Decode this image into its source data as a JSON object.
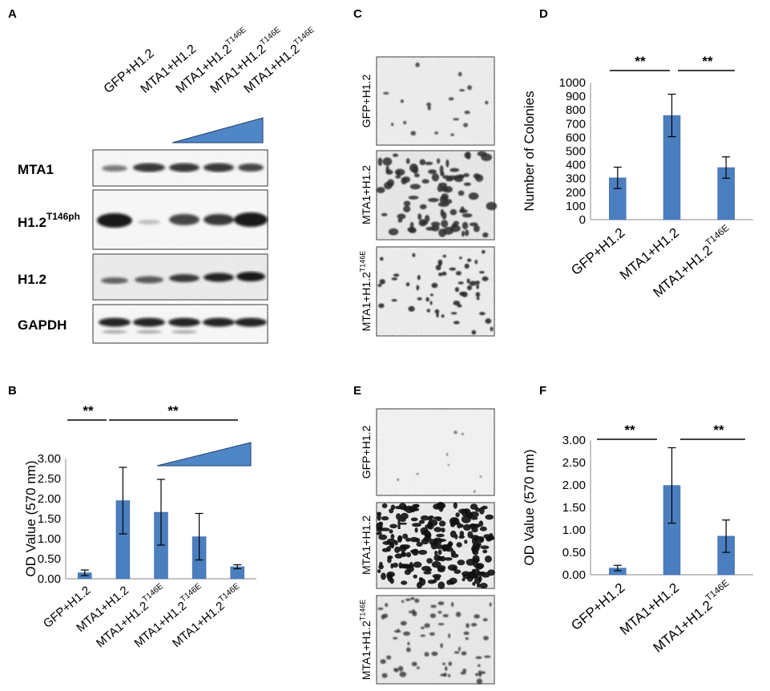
{
  "colors": {
    "bar": "#4a7ebf",
    "bar_edge": "#3a68a6",
    "blot_band": "#1a1a1a",
    "triangle": "#4f86c6"
  },
  "panel_labels": {
    "a": "A",
    "b": "B",
    "c": "C",
    "d": "D",
    "e": "E",
    "f": "F"
  },
  "blot": {
    "lanes": [
      {
        "base": "GFP+H1.2",
        "sup": ""
      },
      {
        "base": "MTA1+H1.2",
        "sup": ""
      },
      {
        "base": "MTA1+H1.2",
        "sup": "T146E"
      },
      {
        "base": "MTA1+H1.2",
        "sup": "T146E"
      },
      {
        "base": "MTA1+H1.2",
        "sup": "T146E"
      }
    ],
    "rows": [
      {
        "base": "MTA1",
        "sup": ""
      },
      {
        "base": "H1.2",
        "sup": "T146ph"
      },
      {
        "base": "H1.2",
        "sup": ""
      },
      {
        "base": "GAPDH",
        "sup": ""
      }
    ]
  },
  "images_c": [
    {
      "base": "GFP+H1.2",
      "sup": ""
    },
    {
      "base": "MTA1+H1.2",
      "sup": ""
    },
    {
      "base": "MTA1+H1.2",
      "sup": "T146E"
    }
  ],
  "images_e": [
    {
      "base": "GFP+H1.2",
      "sup": ""
    },
    {
      "base": "MTA1+H1.2",
      "sup": ""
    },
    {
      "base": "MTA1+H1.2",
      "sup": "T146E"
    }
  ],
  "image_e_overlay_letter": "F",
  "chart_data": [
    {
      "id": "B",
      "type": "bar",
      "categories": [
        {
          "base": "GFP+H1.2",
          "sup": ""
        },
        {
          "base": "MTA1+H1.2",
          "sup": ""
        },
        {
          "base": "MTA1+H1.2",
          "sup": "T146E"
        },
        {
          "base": "MTA1+H1.2",
          "sup": "T146E"
        },
        {
          "base": "MTA1+H1.2",
          "sup": "T146E"
        }
      ],
      "values": [
        0.15,
        1.95,
        1.66,
        1.05,
        0.3
      ],
      "errors": [
        0.07,
        0.83,
        0.82,
        0.58,
        0.05
      ],
      "ylabel": "OD Value (570 nm)",
      "ylim": [
        0,
        3
      ],
      "yticks": [
        "0.00",
        "0.50",
        "1.00",
        "1.50",
        "2.00",
        "2.50",
        "3.00"
      ],
      "significance": [
        {
          "from": 0,
          "to": 1,
          "label": "**"
        },
        {
          "from": 1,
          "to": 4,
          "label": "**"
        }
      ],
      "gradient_triangle": true
    },
    {
      "id": "D",
      "type": "bar",
      "categories": [
        {
          "base": "GFP+H1.2",
          "sup": ""
        },
        {
          "base": "MTA1+H1.2",
          "sup": ""
        },
        {
          "base": "MTA1+H1.2",
          "sup": "T146E"
        }
      ],
      "values": [
        305,
        760,
        380
      ],
      "errors": [
        78,
        155,
        78
      ],
      "ylabel": "Number of Colonies",
      "ylim": [
        0,
        1000
      ],
      "yticks": [
        "0",
        "50",
        "100",
        "150",
        "200",
        "250",
        "300",
        "350",
        "400",
        "450",
        "500",
        "550",
        "600",
        "650",
        "700",
        "750",
        "800",
        "850",
        "900",
        "950",
        "1000"
      ],
      "significance": [
        {
          "from": 0,
          "to": 1,
          "label": "**"
        },
        {
          "from": 1,
          "to": 2,
          "label": "**"
        }
      ]
    },
    {
      "id": "F",
      "type": "bar",
      "categories": [
        {
          "base": "GFP+H1.2",
          "sup": ""
        },
        {
          "base": "MTA1+H1.2",
          "sup": ""
        },
        {
          "base": "MTA1+H1.2",
          "sup": "T146E"
        }
      ],
      "values": [
        0.15,
        1.99,
        0.86
      ],
      "errors": [
        0.06,
        0.84,
        0.36
      ],
      "ylabel": "OD Value (570 nm)",
      "ylim": [
        0,
        3
      ],
      "yticks": [
        "0.00",
        "0.50",
        "1.00",
        "1.50",
        "2.00",
        "2.50",
        "3.00"
      ],
      "significance": [
        {
          "from": 0,
          "to": 1,
          "label": "**"
        },
        {
          "from": 1,
          "to": 2,
          "label": "**"
        }
      ]
    }
  ]
}
